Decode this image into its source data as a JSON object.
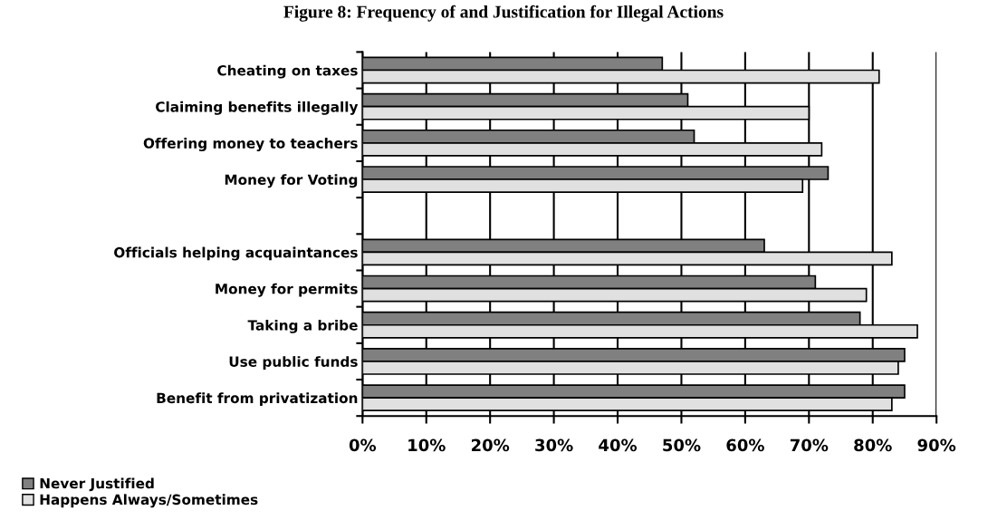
{
  "chart_data": {
    "type": "bar",
    "orientation": "horizontal",
    "title": "Figure 8: Frequency of and Justification for Illegal Actions",
    "categories": [
      "Cheating on taxes",
      "Claiming benefits illegally",
      "Offering money to teachers",
      "Money for Voting",
      null,
      "Officials helping acquaintances",
      "Money for permits",
      "Taking a bribe",
      "Use public funds",
      "Benefit from privatization"
    ],
    "series": [
      {
        "name": "Never Justified",
        "color": "#808080",
        "values": [
          47,
          51,
          52,
          73,
          null,
          63,
          71,
          78,
          85,
          85
        ]
      },
      {
        "name": "Happens Always/Sometimes",
        "color": "#e0e0e0",
        "values": [
          81,
          70,
          72,
          69,
          null,
          83,
          79,
          87,
          84,
          83
        ]
      }
    ],
    "xlim": [
      0,
      90
    ],
    "xticks": [
      {
        "value": 0,
        "label": "0%"
      },
      {
        "value": 10,
        "label": "10%"
      },
      {
        "value": 20,
        "label": "20%"
      },
      {
        "value": 30,
        "label": "30%"
      },
      {
        "value": 40,
        "label": "40%"
      },
      {
        "value": 50,
        "label": "50%"
      },
      {
        "value": 60,
        "label": "60%"
      },
      {
        "value": 70,
        "label": "70%"
      },
      {
        "value": 80,
        "label": "80%"
      },
      {
        "value": 90,
        "label": "90%"
      }
    ],
    "grid": "x",
    "legend": "bottom left"
  }
}
